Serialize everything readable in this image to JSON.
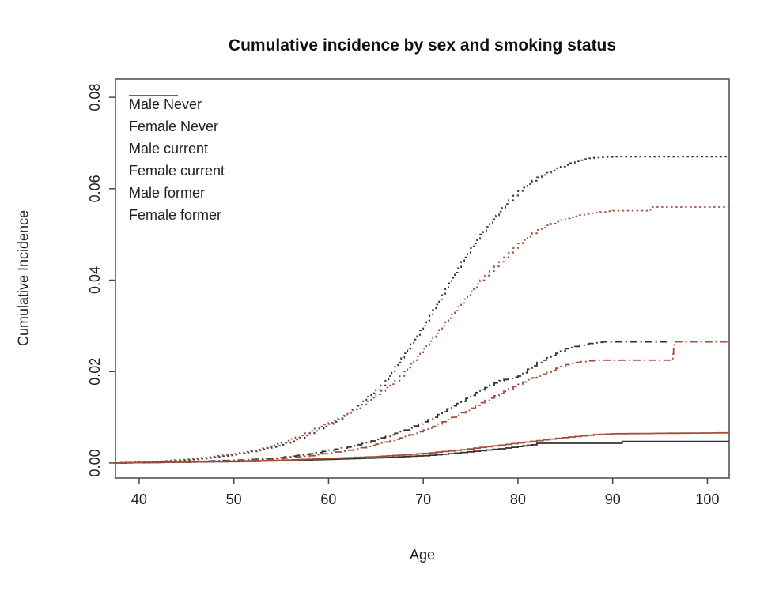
{
  "chart_data": {
    "type": "line",
    "title": "Cumulative incidence by sex and smoking status",
    "xlabel": "Age",
    "ylabel": "Cumulative Incidence",
    "xlim": [
      37.5,
      102.3
    ],
    "ylim": [
      -0.0033,
      0.084
    ],
    "grid": false,
    "legend_position": "top-left",
    "x_ticks": [
      {
        "v": 40,
        "label": "40"
      },
      {
        "v": 50,
        "label": "50"
      },
      {
        "v": 60,
        "label": "60"
      },
      {
        "v": 70,
        "label": "70"
      },
      {
        "v": 80,
        "label": "80"
      },
      {
        "v": 90,
        "label": "90"
      },
      {
        "v": 100,
        "label": "100"
      }
    ],
    "y_ticks": [
      {
        "v": 0.0,
        "label": "0.00"
      },
      {
        "v": 0.02,
        "label": "0.02"
      },
      {
        "v": 0.04,
        "label": "0.04"
      },
      {
        "v": 0.06,
        "label": "0.06"
      },
      {
        "v": 0.08,
        "label": "0.08"
      }
    ],
    "colors": {
      "male": "#333333",
      "female": "#a34f3b"
    },
    "series": [
      {
        "name": "Male Never",
        "color": "#333333",
        "line": "solid",
        "points": [
          [
            37.5,
            0
          ],
          [
            45,
            0.0002
          ],
          [
            50,
            0.0003
          ],
          [
            55,
            0.0005
          ],
          [
            60,
            0.0008
          ],
          [
            65,
            0.0011
          ],
          [
            68,
            0.0014
          ],
          [
            70,
            0.0016
          ],
          [
            72,
            0.0019
          ],
          [
            74,
            0.0023
          ],
          [
            76,
            0.0027
          ],
          [
            78,
            0.0031
          ],
          [
            80,
            0.0036
          ],
          [
            81.5,
            0.004
          ],
          [
            82,
            0.0043
          ],
          [
            90.5,
            0.0043
          ],
          [
            91,
            0.0047
          ],
          [
            102.3,
            0.0047
          ]
        ]
      },
      {
        "name": "Female Never",
        "color": "#a34f3b",
        "line": "solid",
        "points": [
          [
            37.5,
            0
          ],
          [
            45,
            0.0002
          ],
          [
            50,
            0.0004
          ],
          [
            55,
            0.0006
          ],
          [
            60,
            0.001
          ],
          [
            65,
            0.0014
          ],
          [
            68,
            0.0018
          ],
          [
            70,
            0.0021
          ],
          [
            72,
            0.0025
          ],
          [
            74,
            0.0029
          ],
          [
            76,
            0.0034
          ],
          [
            78,
            0.0039
          ],
          [
            80,
            0.0044
          ],
          [
            82,
            0.0049
          ],
          [
            84,
            0.0054
          ],
          [
            86,
            0.0058
          ],
          [
            88,
            0.0062
          ],
          [
            90,
            0.0064
          ],
          [
            102.3,
            0.0066
          ]
        ]
      },
      {
        "name": "Male current",
        "color": "#333333",
        "line": "dotted",
        "points": [
          [
            37.5,
            0
          ],
          [
            42,
            0.0003
          ],
          [
            46,
            0.0008
          ],
          [
            50,
            0.0018
          ],
          [
            53,
            0.003
          ],
          [
            55,
            0.004
          ],
          [
            57,
            0.0055
          ],
          [
            59,
            0.0075
          ],
          [
            60,
            0.0085
          ],
          [
            61,
            0.0095
          ],
          [
            62,
            0.011
          ],
          [
            63,
            0.0125
          ],
          [
            64,
            0.0145
          ],
          [
            65,
            0.016
          ],
          [
            66,
            0.018
          ],
          [
            67,
            0.021
          ],
          [
            68,
            0.024
          ],
          [
            69,
            0.027
          ],
          [
            70,
            0.03
          ],
          [
            71,
            0.0335
          ],
          [
            72,
            0.037
          ],
          [
            73,
            0.0405
          ],
          [
            74,
            0.044
          ],
          [
            75,
            0.047
          ],
          [
            76,
            0.05
          ],
          [
            77,
            0.0525
          ],
          [
            78,
            0.055
          ],
          [
            79,
            0.0575
          ],
          [
            80,
            0.0595
          ],
          [
            81,
            0.061
          ],
          [
            82,
            0.0625
          ],
          [
            83,
            0.0635
          ],
          [
            84,
            0.0645
          ],
          [
            85,
            0.0652
          ],
          [
            86,
            0.066
          ],
          [
            87,
            0.0665
          ],
          [
            88,
            0.0668
          ],
          [
            90,
            0.067
          ],
          [
            102.3,
            0.067
          ]
        ]
      },
      {
        "name": "Female current",
        "color": "#a34f3b",
        "line": "dotted",
        "points": [
          [
            37.5,
            0
          ],
          [
            42,
            0.0004
          ],
          [
            46,
            0.001
          ],
          [
            50,
            0.002
          ],
          [
            53,
            0.0032
          ],
          [
            55,
            0.0045
          ],
          [
            57,
            0.006
          ],
          [
            59,
            0.008
          ],
          [
            60,
            0.0088
          ],
          [
            61,
            0.0098
          ],
          [
            62,
            0.011
          ],
          [
            63,
            0.012
          ],
          [
            64,
            0.0135
          ],
          [
            65,
            0.015
          ],
          [
            66,
            0.0165
          ],
          [
            67,
            0.018
          ],
          [
            68,
            0.02
          ],
          [
            69,
            0.0225
          ],
          [
            70,
            0.025
          ],
          [
            71,
            0.0275
          ],
          [
            72,
            0.03
          ],
          [
            73,
            0.0325
          ],
          [
            74,
            0.035
          ],
          [
            75,
            0.0375
          ],
          [
            76,
            0.04
          ],
          [
            77,
            0.042
          ],
          [
            78,
            0.044
          ],
          [
            79,
            0.046
          ],
          [
            80,
            0.048
          ],
          [
            81,
            0.0495
          ],
          [
            82,
            0.051
          ],
          [
            83,
            0.052
          ],
          [
            84,
            0.0528
          ],
          [
            85,
            0.0535
          ],
          [
            86,
            0.054
          ],
          [
            87,
            0.0545
          ],
          [
            88,
            0.0548
          ],
          [
            90,
            0.0552
          ],
          [
            93.8,
            0.0552
          ],
          [
            94,
            0.056
          ],
          [
            102.3,
            0.056
          ]
        ]
      },
      {
        "name": "Male former",
        "color": "#333333",
        "line": "dashdot",
        "points": [
          [
            37.5,
            0
          ],
          [
            45,
            0.0003
          ],
          [
            50,
            0.0006
          ],
          [
            54,
            0.001
          ],
          [
            56,
            0.0015
          ],
          [
            58,
            0.002
          ],
          [
            60,
            0.0028
          ],
          [
            62,
            0.0035
          ],
          [
            64,
            0.0045
          ],
          [
            66,
            0.0058
          ],
          [
            68,
            0.0072
          ],
          [
            70,
            0.009
          ],
          [
            71,
            0.01
          ],
          [
            72,
            0.0112
          ],
          [
            73,
            0.0125
          ],
          [
            74,
            0.0135
          ],
          [
            75,
            0.0148
          ],
          [
            76,
            0.016
          ],
          [
            77,
            0.017
          ],
          [
            78,
            0.018
          ],
          [
            79,
            0.0185
          ],
          [
            80,
            0.019
          ],
          [
            81,
            0.0205
          ],
          [
            82,
            0.022
          ],
          [
            83,
            0.023
          ],
          [
            84,
            0.024
          ],
          [
            85,
            0.025
          ],
          [
            86,
            0.0255
          ],
          [
            87,
            0.026
          ],
          [
            88,
            0.0263
          ],
          [
            89,
            0.0265
          ],
          [
            96,
            0.0265
          ]
        ]
      },
      {
        "name": "Female former",
        "color": "#a34f3b",
        "line": "dashdot",
        "points": [
          [
            37.5,
            0
          ],
          [
            45,
            0.0002
          ],
          [
            50,
            0.0005
          ],
          [
            54,
            0.0008
          ],
          [
            56,
            0.0012
          ],
          [
            58,
            0.0016
          ],
          [
            60,
            0.0022
          ],
          [
            62,
            0.0028
          ],
          [
            64,
            0.0036
          ],
          [
            66,
            0.0046
          ],
          [
            68,
            0.0058
          ],
          [
            70,
            0.0072
          ],
          [
            71,
            0.008
          ],
          [
            72,
            0.009
          ],
          [
            73,
            0.01
          ],
          [
            74,
            0.011
          ],
          [
            75,
            0.012
          ],
          [
            76,
            0.0132
          ],
          [
            77,
            0.0142
          ],
          [
            78,
            0.0152
          ],
          [
            79,
            0.0162
          ],
          [
            80,
            0.0172
          ],
          [
            81,
            0.0182
          ],
          [
            82,
            0.019
          ],
          [
            83,
            0.0198
          ],
          [
            84,
            0.0207
          ],
          [
            85,
            0.0215
          ],
          [
            86,
            0.022
          ],
          [
            88,
            0.0225
          ],
          [
            96.3,
            0.0225
          ],
          [
            96.5,
            0.0265
          ],
          [
            102.3,
            0.0265
          ]
        ]
      }
    ]
  }
}
